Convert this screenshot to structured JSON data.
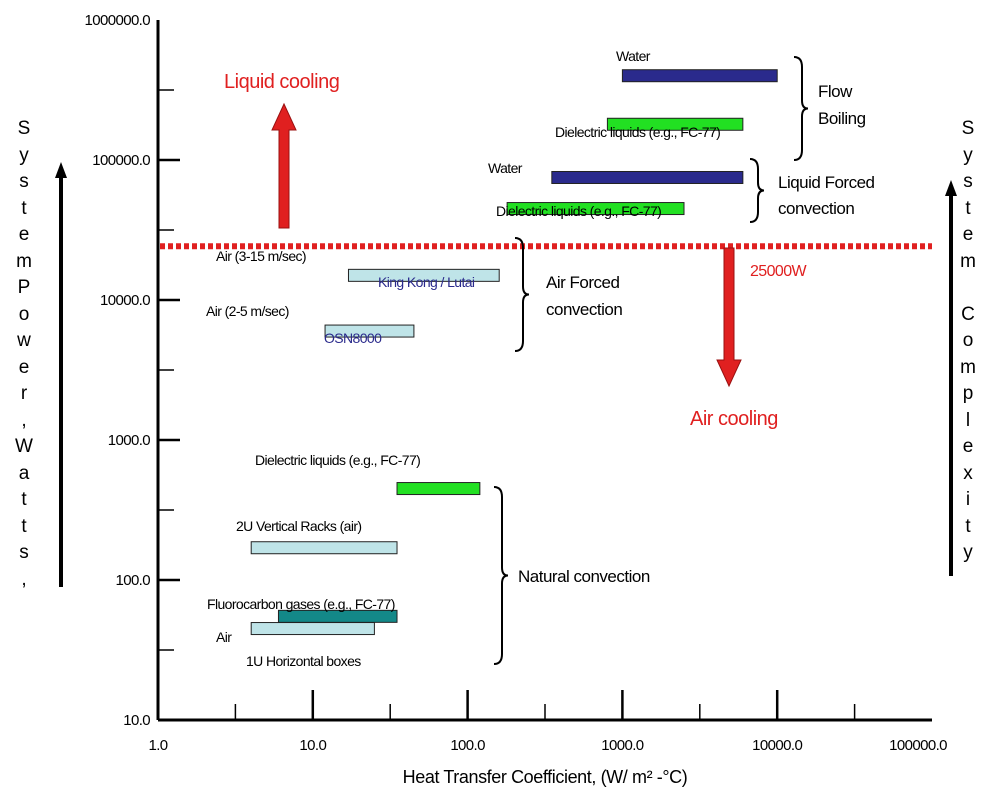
{
  "chart_data": {
    "type": "range-bar",
    "xlabel": "Heat Transfer Coefficient, (W/ m² -°C)",
    "ylabel": "System Power, Watts,",
    "right_label": "System Complexity",
    "x_scale": "log",
    "y_scale": "log",
    "xlim": [
      1,
      100000
    ],
    "ylim": [
      10,
      1000000
    ],
    "x_ticks": [
      "1.0",
      "10.0",
      "100.0",
      "1000.0",
      "10000.0",
      "100000.0"
    ],
    "y_ticks": [
      "10.0",
      "100.0",
      "1000.0",
      "10000.0",
      "100000.0",
      "1000000.0"
    ],
    "threshold": {
      "label": "25000W",
      "y": 25000,
      "color": "#e02020"
    },
    "bars": [
      {
        "name": "Water (flow boiling)",
        "x": [
          1000,
          10000
        ],
        "y": 400000,
        "color": "#2a2a8c"
      },
      {
        "name": "Dielectric liquids (flow boiling)",
        "x": [
          800,
          6000
        ],
        "y": 180000,
        "color": "#22e022"
      },
      {
        "name": "Water (liquid forced)",
        "x": [
          350,
          6000
        ],
        "y": 75000,
        "color": "#2a2a8c"
      },
      {
        "name": "Dielectric liquids (liquid forced)",
        "x": [
          180,
          2500
        ],
        "y": 45000,
        "color": "#22e022"
      },
      {
        "name": "Air (3-15 m/sec)",
        "x": [
          17,
          160
        ],
        "y": 15000,
        "color": "#bfe4e8"
      },
      {
        "name": "Air (2-5 m/sec)",
        "x": [
          12,
          45
        ],
        "y": 6000,
        "color": "#bfe4e8"
      },
      {
        "name": "Dielectric liquids (natural)",
        "x": [
          35,
          120
        ],
        "y": 450,
        "color": "#22e022"
      },
      {
        "name": "2U Vertical Racks (air)",
        "x": [
          4,
          35
        ],
        "y": 170,
        "color": "#bfe4e8"
      },
      {
        "name": "Fluorocarbon gases (natural)",
        "x": [
          6,
          35
        ],
        "y": 55,
        "color": "#138888"
      },
      {
        "name": "Air (natural)",
        "x": [
          4,
          25
        ],
        "y": 45,
        "color": "#bfe4e8"
      }
    ],
    "labels": [
      {
        "text": "Water"
      },
      {
        "text": "Dielectric liquids (e.g., FC-77)"
      },
      {
        "text": "Water"
      },
      {
        "text": "Dielectric liquids (e.g., FC-77)"
      },
      {
        "text": "Air (3-15 m/sec)"
      },
      {
        "text": "King Kong / Lutai"
      },
      {
        "text": "Air (2-5 m/sec)"
      },
      {
        "text": "OSN8000"
      },
      {
        "text": "Dielectric liquids (e.g., FC-77)"
      },
      {
        "text": "2U Vertical Racks (air)"
      },
      {
        "text": "Fluorocarbon gases (e.g., FC-77)"
      },
      {
        "text": "Air"
      },
      {
        "text": "1U Horizontal boxes"
      }
    ],
    "groups": [
      {
        "lines": [
          "Flow",
          "Boiling"
        ]
      },
      {
        "lines": [
          "Liquid Forced",
          "convection"
        ]
      },
      {
        "lines": [
          "Air Forced",
          "convection"
        ]
      },
      {
        "lines": [
          "Natural convection"
        ]
      }
    ],
    "annotations": [
      {
        "text": "Liquid cooling",
        "color": "#e02020"
      },
      {
        "text": "Air cooling",
        "color": "#e02020"
      }
    ]
  }
}
